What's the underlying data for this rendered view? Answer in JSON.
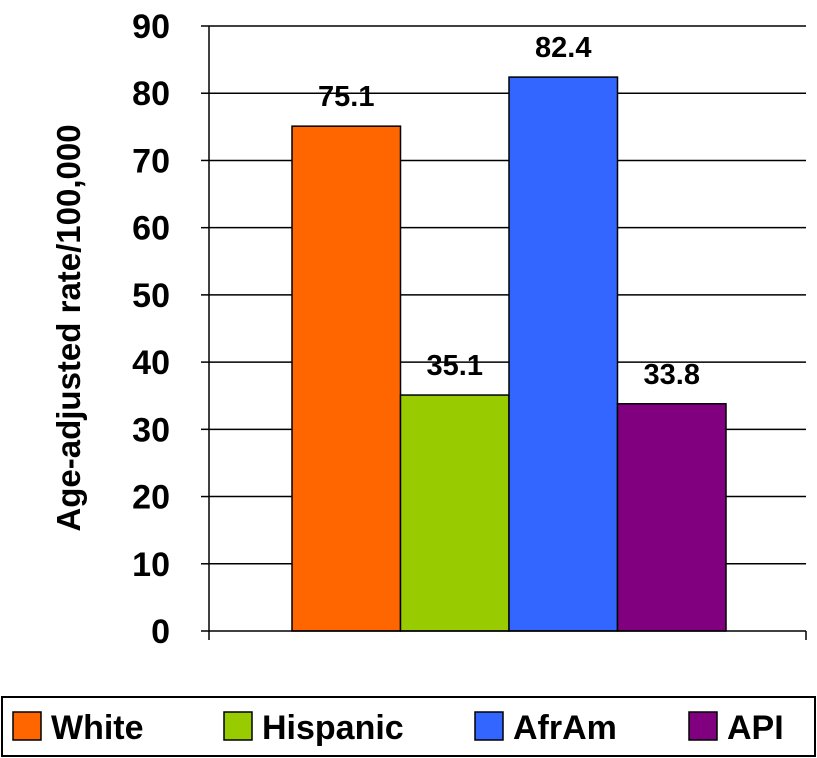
{
  "chart_data": {
    "type": "bar",
    "title": "",
    "xlabel": "",
    "ylabel": "Age-adjusted rate/100,000",
    "ylim": [
      0,
      90
    ],
    "yticks": [
      0,
      10,
      20,
      30,
      40,
      50,
      60,
      70,
      80,
      90
    ],
    "grid": true,
    "legend_placement": "bottom",
    "categories": [
      ""
    ],
    "series": [
      {
        "name": "White",
        "values": [
          75.1
        ],
        "value_label": "75.1",
        "color": "#FF6600"
      },
      {
        "name": "Hispanic",
        "values": [
          35.1
        ],
        "value_label": "35.1",
        "color": "#99CC00"
      },
      {
        "name": "AfrAm",
        "values": [
          82.4
        ],
        "value_label": "82.4",
        "color": "#3366FF"
      },
      {
        "name": "API",
        "values": [
          33.8
        ],
        "value_label": "33.8",
        "color": "#800080"
      }
    ]
  }
}
